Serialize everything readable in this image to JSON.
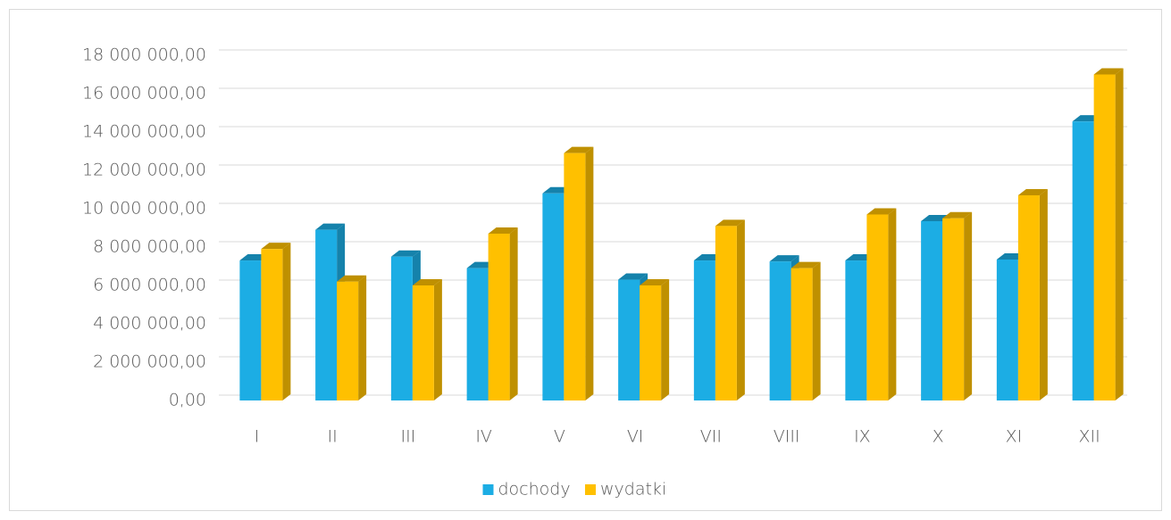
{
  "chart_data": {
    "type": "bar3d",
    "categories": [
      "I",
      "II",
      "III",
      "IV",
      "V",
      "VI",
      "VII",
      "VIII",
      "IX",
      "X",
      "XI",
      "XII"
    ],
    "series": [
      {
        "name": "dochody",
        "color": "#1cade4",
        "side_color": "#1582ab",
        "values": [
          7300000,
          8900000,
          7500000,
          6900000,
          10800000,
          6300000,
          7300000,
          7250000,
          7300000,
          9350000,
          7350000,
          14550000
        ]
      },
      {
        "name": "wydatki",
        "color": "#ffc000",
        "side_color": "#bf9000",
        "values": [
          7900000,
          6200000,
          6000000,
          8700000,
          12900000,
          6000000,
          9100000,
          6900000,
          9700000,
          9500000,
          10700000,
          17000000
        ]
      }
    ],
    "ylim": [
      0,
      18000000
    ],
    "yticks": [
      {
        "value": 0,
        "label": "0,00"
      },
      {
        "value": 2000000,
        "label": "2 000 000,00"
      },
      {
        "value": 4000000,
        "label": "4 000 000,00"
      },
      {
        "value": 6000000,
        "label": "6 000 000,00"
      },
      {
        "value": 8000000,
        "label": "8 000 000,00"
      },
      {
        "value": 10000000,
        "label": "10 000 000,00"
      },
      {
        "value": 12000000,
        "label": "12 000 000,00"
      },
      {
        "value": 14000000,
        "label": "14 000 000,00"
      },
      {
        "value": 16000000,
        "label": "16 000 000,00"
      },
      {
        "value": 18000000,
        "label": "18 000 000,00"
      }
    ],
    "grid": true,
    "legend": "bottom"
  }
}
